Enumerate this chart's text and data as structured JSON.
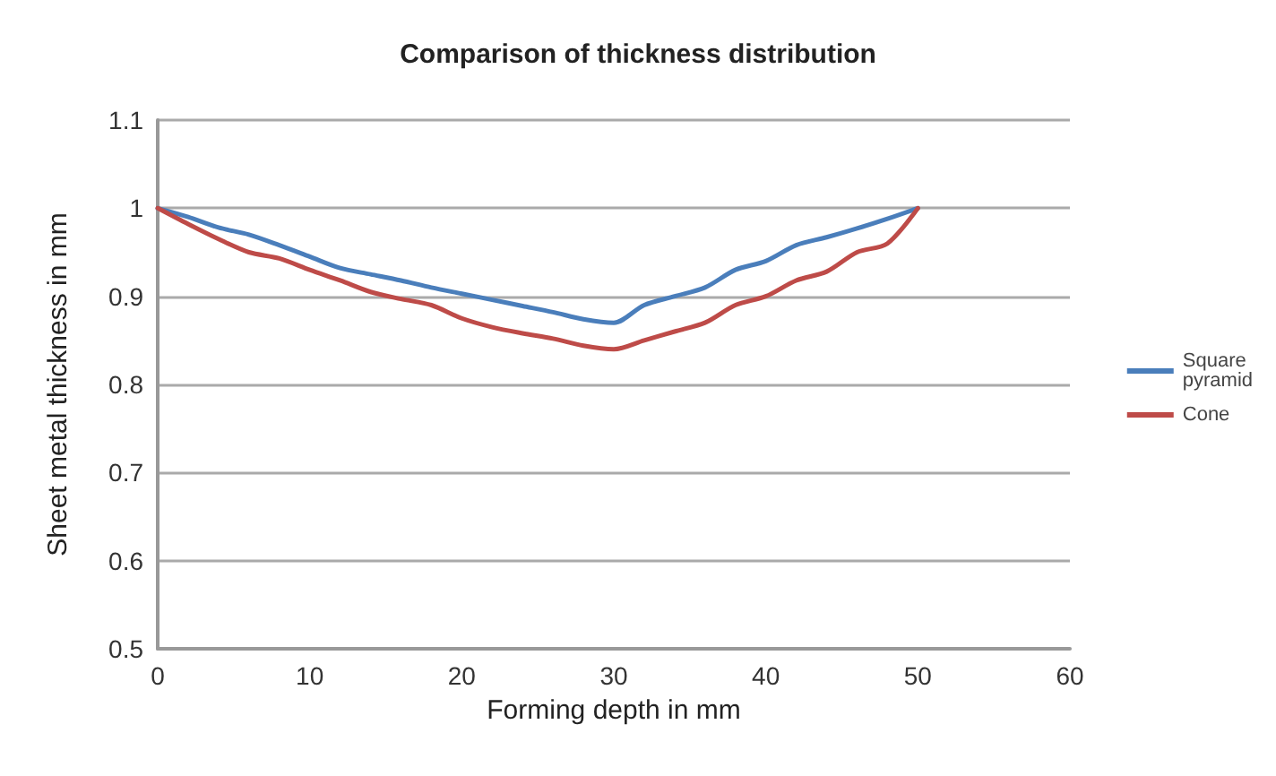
{
  "chart_data": {
    "type": "line",
    "title": "Comparison of thickness distribution",
    "xlabel": "Forming depth in mm",
    "ylabel": "Sheet metal thickness in mm",
    "x": [
      0,
      2,
      4,
      6,
      8,
      10,
      12,
      14,
      16,
      18,
      20,
      22,
      24,
      26,
      28,
      30,
      32,
      34,
      36,
      38,
      40,
      42,
      44,
      46,
      48,
      50
    ],
    "series": [
      {
        "name": "Square pyramid",
        "color": "#4a7ebb",
        "values": [
          1,
          0.99,
          0.978,
          0.97,
          0.958,
          0.945,
          0.932,
          0.925,
          0.918,
          0.91,
          0.903,
          0.896,
          0.889,
          0.882,
          0.874,
          0.87,
          0.89,
          0.9,
          0.91,
          0.93,
          0.94,
          0.958,
          0.967,
          0.977,
          0.988,
          1
        ]
      },
      {
        "name": "Cone",
        "color": "#be4b48",
        "values": [
          1,
          0.982,
          0.965,
          0.95,
          0.943,
          0.93,
          0.918,
          0.905,
          0.897,
          0.89,
          0.875,
          0.865,
          0.858,
          0.852,
          0.844,
          0.84,
          0.85,
          0.86,
          0.87,
          0.89,
          0.9,
          0.918,
          0.928,
          0.95,
          0.96,
          1
        ]
      }
    ],
    "xlim": [
      0,
      60
    ],
    "xticks": [
      0,
      10,
      20,
      30,
      40,
      50,
      60
    ],
    "ylim": [
      0.5,
      1.1
    ],
    "yticks": [
      0.5,
      0.6,
      0.7,
      0.8,
      0.9,
      1,
      1.1
    ],
    "grid": "y",
    "legend": "right",
    "marker": "none",
    "line_style": "solid"
  }
}
